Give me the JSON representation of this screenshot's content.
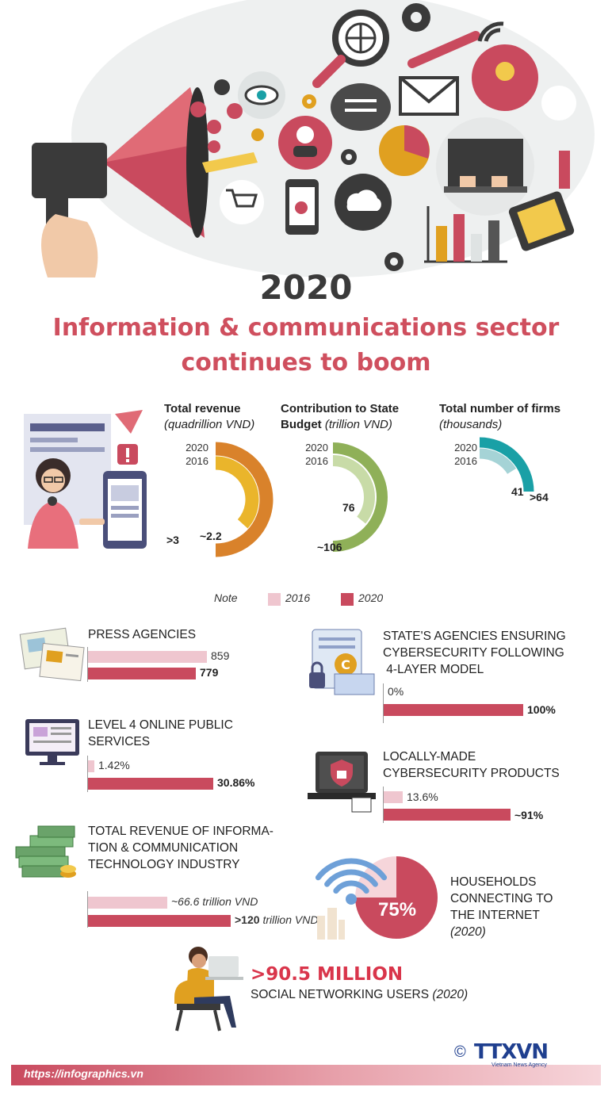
{
  "header": {
    "year": "2020",
    "title_line1": "Information & communications sector",
    "title_line2": "continues to boom"
  },
  "kpis": [
    {
      "title": "Total revenue",
      "unit": "(quadrillion VND)",
      "value_2016_label": "~2.2",
      "value_2020_label": ">3",
      "color_2016": "#eab52b",
      "color_2020": "#d9822b"
    },
    {
      "title_line1": "Contribution to State",
      "title_line2": "Budget",
      "unit": "(trillion  VND)",
      "value_2016_label": "76",
      "value_2020_label": "~106",
      "color_2016": "#c8dba7",
      "color_2020": "#8fb058"
    },
    {
      "title": "Total number of firms",
      "unit": "(thousands)",
      "value_2016_label": "41",
      "value_2020_label": ">64",
      "color_2016": "#a5d3d6",
      "color_2020": "#1aa0a6"
    }
  ],
  "year_labels": {
    "y2020": "2020",
    "y2016": "2016"
  },
  "legend": {
    "note": "Note",
    "label_2016": "2016",
    "label_2020": "2020",
    "color_2016": "#efc6cf",
    "color_2020": "#c94a5e"
  },
  "chart_data": [
    {
      "type": "pie",
      "title": "Total revenue (quadrillion VND)",
      "categories": [
        "2016",
        "2020"
      ],
      "value_labels": [
        "~2.2",
        ">3"
      ],
      "values": [
        2.2,
        3
      ]
    },
    {
      "type": "pie",
      "title": "Contribution to State Budget (trillion VND)",
      "categories": [
        "2016",
        "2020"
      ],
      "value_labels": [
        "76",
        "~106"
      ],
      "values": [
        76,
        106
      ]
    },
    {
      "type": "pie",
      "title": "Total number of firms (thousands)",
      "categories": [
        "2016",
        "2020"
      ],
      "value_labels": [
        "41",
        ">64"
      ],
      "values": [
        41,
        64
      ]
    },
    {
      "type": "bar",
      "title": "PRESS AGENCIES",
      "categories": [
        "2016",
        "2020"
      ],
      "values": [
        859,
        779
      ],
      "labels": [
        "859",
        "779"
      ]
    },
    {
      "type": "bar",
      "title": "LEVEL 4 ONLINE PUBLIC SERVICES",
      "categories": [
        "2016",
        "2020"
      ],
      "values": [
        1.42,
        30.86
      ],
      "labels": [
        "1.42%",
        "30.86%"
      ]
    },
    {
      "type": "bar",
      "title": "TOTAL REVENUE OF INFORMATION & COMMUNICATION TECHNOLOGY INDUSTRY",
      "categories": [
        "2016",
        "2020"
      ],
      "values": [
        66.6,
        120
      ],
      "labels": [
        "~66.6 trillion VND",
        ">120 trillion VND"
      ]
    },
    {
      "type": "bar",
      "title": "STATE'S AGENCIES ENSURING CYBERSECURITY FOLLOWING 4-LAYER MODEL",
      "categories": [
        "2016",
        "2020"
      ],
      "values": [
        0,
        100
      ],
      "labels": [
        "0%",
        "100%"
      ]
    },
    {
      "type": "bar",
      "title": "LOCALLY-MADE CYBERSECURITY PRODUCTS",
      "categories": [
        "2016",
        "2020"
      ],
      "values": [
        13.6,
        91
      ],
      "labels": [
        "13.6%",
        "~91%"
      ]
    },
    {
      "type": "pie",
      "title": "HOUSEHOLDS CONNECTING TO THE INTERNET (2020)",
      "categories": [
        "connected"
      ],
      "values": [
        75
      ],
      "labels": [
        "75%"
      ]
    }
  ],
  "sections": {
    "press": {
      "title": "PRESS AGENCIES",
      "v2016": "859",
      "v2020": "779"
    },
    "online": {
      "line1": "LEVEL 4 ONLINE PUBLIC",
      "line2": "SERVICES",
      "v2016": "1.42%",
      "v2020": "30.86%"
    },
    "ict": {
      "line1": "TOTAL REVENUE OF INFORMA-",
      "line2": "TION & COMMUNICATION",
      "line3": "TECHNOLOGY INDUSTRY",
      "v2016": "~66.6 trillion VND",
      "v2020_num": ">120",
      "v2020_unit": "trillion VND"
    },
    "cyber4": {
      "line1": "STATE'S AGENCIES ENSURING",
      "line2": "CYBERSECURITY FOLLOWING",
      "line3": " 4-LAYER MODEL",
      "v2016": "0%",
      "v2020": "100%"
    },
    "products": {
      "line1": "LOCALLY-MADE",
      "line2": "CYBERSECURITY PRODUCTS",
      "v2016": "13.6%",
      "v2020": "~91%"
    },
    "households": {
      "line1": "HOUSEHOLDS",
      "line2": "CONNECTING TO",
      "line3": "THE INTERNET",
      "year": "(2020)",
      "pct": "75%"
    },
    "social": {
      "big": ">90.5 MILLION",
      "label": "SOCIAL NETWORKING USERS",
      "year": "(2020)"
    }
  },
  "footer": {
    "url": "https://infographics.vn",
    "copyright": "©",
    "brand": "TTXVN",
    "agency": "Vietnam News Agency"
  }
}
